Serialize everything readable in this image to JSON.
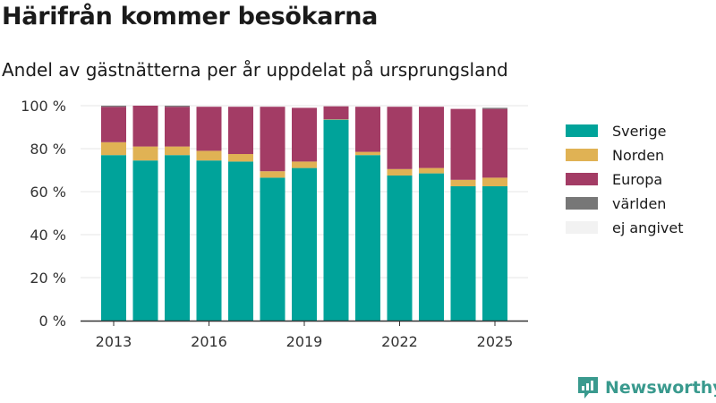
{
  "title": "Härifrån kommer besökarna",
  "subtitle": "Andel av gästnätterna per år uppdelat på ursprungsland",
  "brand": {
    "name": "Newsworthy",
    "icon": "newsworthy-logo-icon"
  },
  "chart_data": {
    "type": "bar",
    "stacked": true,
    "categories": [
      "2013",
      "2014",
      "2015",
      "2016",
      "2017",
      "2018",
      "2019",
      "2020",
      "2021",
      "2022",
      "2023",
      "2024",
      "2025"
    ],
    "x_tick_labels": [
      "2013",
      "2016",
      "2019",
      "2022",
      "2025"
    ],
    "y_tick_labels": [
      "0 %",
      "20 %",
      "40 %",
      "60 %",
      "80 %",
      "100 %"
    ],
    "ylim": [
      0,
      100
    ],
    "grid": true,
    "legend_position": "right",
    "series": [
      {
        "name": "Sverige",
        "color": "#00a39a",
        "values": [
          77,
          74.5,
          77,
          74.5,
          74,
          66.5,
          71,
          93.5,
          77,
          67.5,
          68.5,
          62.5,
          62.5
        ]
      },
      {
        "name": "Norden",
        "color": "#e0b254",
        "values": [
          6,
          6.5,
          4,
          4.5,
          3.5,
          3,
          3,
          0.2,
          1.5,
          3,
          2.5,
          3,
          4
        ]
      },
      {
        "name": "Europa",
        "color": "#a33c65",
        "values": [
          16.5,
          19,
          18.5,
          20.5,
          22,
          30,
          25,
          6,
          21,
          29,
          28.5,
          33,
          32
        ]
      },
      {
        "name": "världen",
        "color": "#777777",
        "values": [
          0.5,
          0,
          0.5,
          0,
          0,
          0,
          0,
          0,
          0,
          0,
          0,
          0,
          0.5
        ]
      },
      {
        "name": "ej angivet",
        "color": "#f2f2f2",
        "values": [
          0,
          0,
          0,
          0,
          0,
          0,
          0,
          0,
          0,
          0,
          0,
          0,
          0
        ]
      }
    ]
  }
}
